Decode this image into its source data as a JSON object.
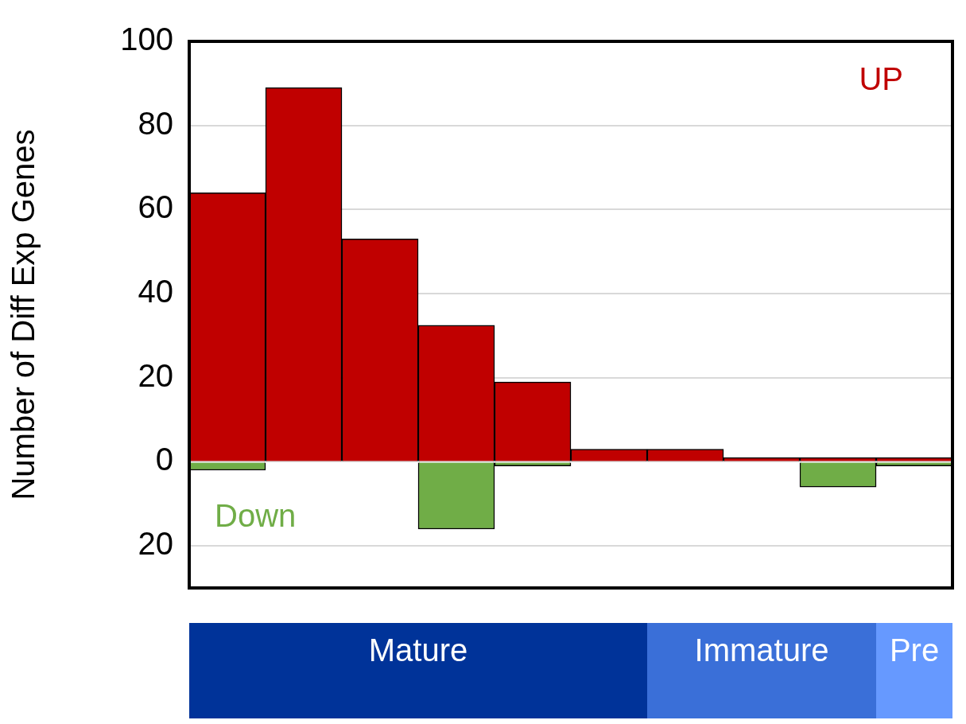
{
  "chart_data": {
    "type": "bar",
    "ylabel": "Number of Diff Exp Genes",
    "categories": [
      null,
      null,
      null,
      null,
      null,
      null,
      null,
      null,
      null,
      null
    ],
    "stacked": true,
    "series": [
      {
        "color": "#c00000",
        "values": [
          64,
          89,
          53,
          32.5,
          19,
          3,
          3,
          1,
          1,
          1
        ]
      },
      {
        "color": "#70ad47",
        "values": [
          -2,
          null,
          null,
          -16,
          -1,
          null,
          null,
          null,
          -6,
          -1
        ]
      }
    ],
    "ylim": [
      -30,
      100
    ],
    "yticks": [
      {
        "value": -20,
        "label": "20"
      },
      0,
      20,
      40,
      60,
      80,
      100
    ],
    "grid": "y",
    "annotations": [
      "UP",
      "Down",
      "Mature",
      "Immature",
      "Pre"
    ]
  }
}
